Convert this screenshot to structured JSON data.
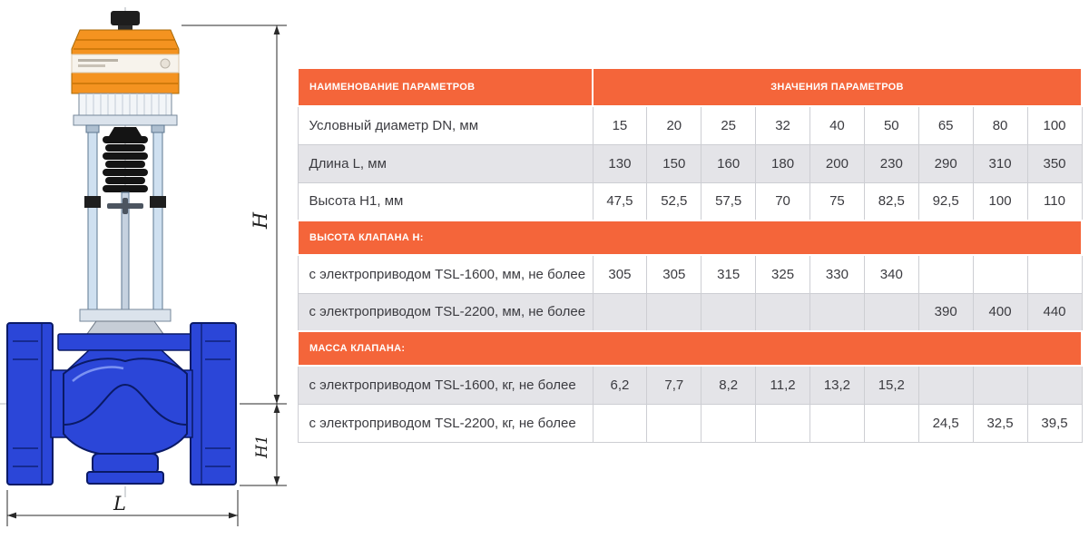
{
  "diagram": {
    "dim_h": "H",
    "dim_h1": "H1",
    "dim_l": "L",
    "colors": {
      "actuator_orange": "#f49320",
      "valve_blue": "#2b46d8",
      "valve_outline": "#0a1a66"
    }
  },
  "table": {
    "colors": {
      "header_bg": "#f4653a",
      "shade_bg": "#e4e4e8",
      "border": "#cdced3"
    },
    "header": {
      "name": "НАИМЕНОВАНИЕ ПАРАМЕТРОВ",
      "values": "ЗНАЧЕНИЯ ПАРАМЕТРОВ"
    },
    "rows": [
      {
        "type": "data",
        "shade": false,
        "label": "Условный диаметр DN, мм",
        "values": [
          "15",
          "20",
          "25",
          "32",
          "40",
          "50",
          "65",
          "80",
          "100"
        ]
      },
      {
        "type": "data",
        "shade": true,
        "label": "Длина L, мм",
        "values": [
          "130",
          "150",
          "160",
          "180",
          "200",
          "230",
          "290",
          "310",
          "350"
        ]
      },
      {
        "type": "data",
        "shade": false,
        "label": "Высота H1, мм",
        "values": [
          "47,5",
          "52,5",
          "57,5",
          "70",
          "75",
          "82,5",
          "92,5",
          "100",
          "110"
        ]
      },
      {
        "type": "section",
        "label": "ВЫСОТА КЛАПАНА H:"
      },
      {
        "type": "data",
        "shade": false,
        "label": "с электроприводом TSL-1600, мм, не более",
        "values": [
          "305",
          "305",
          "315",
          "325",
          "330",
          "340",
          "",
          "",
          ""
        ]
      },
      {
        "type": "data",
        "shade": true,
        "label": "с электроприводом TSL-2200, мм, не более",
        "values": [
          "",
          "",
          "",
          "",
          "",
          "",
          "390",
          "400",
          "440"
        ]
      },
      {
        "type": "section",
        "label": "МАССА КЛАПАНА:"
      },
      {
        "type": "data",
        "shade": true,
        "label": "с электроприводом TSL-1600, кг, не более",
        "values": [
          "6,2",
          "7,7",
          "8,2",
          "11,2",
          "13,2",
          "15,2",
          "",
          "",
          ""
        ]
      },
      {
        "type": "data",
        "shade": false,
        "label": "с электроприводом TSL-2200, кг, не более",
        "values": [
          "",
          "",
          "",
          "",
          "",
          "",
          "24,5",
          "32,5",
          "39,5"
        ]
      }
    ]
  }
}
